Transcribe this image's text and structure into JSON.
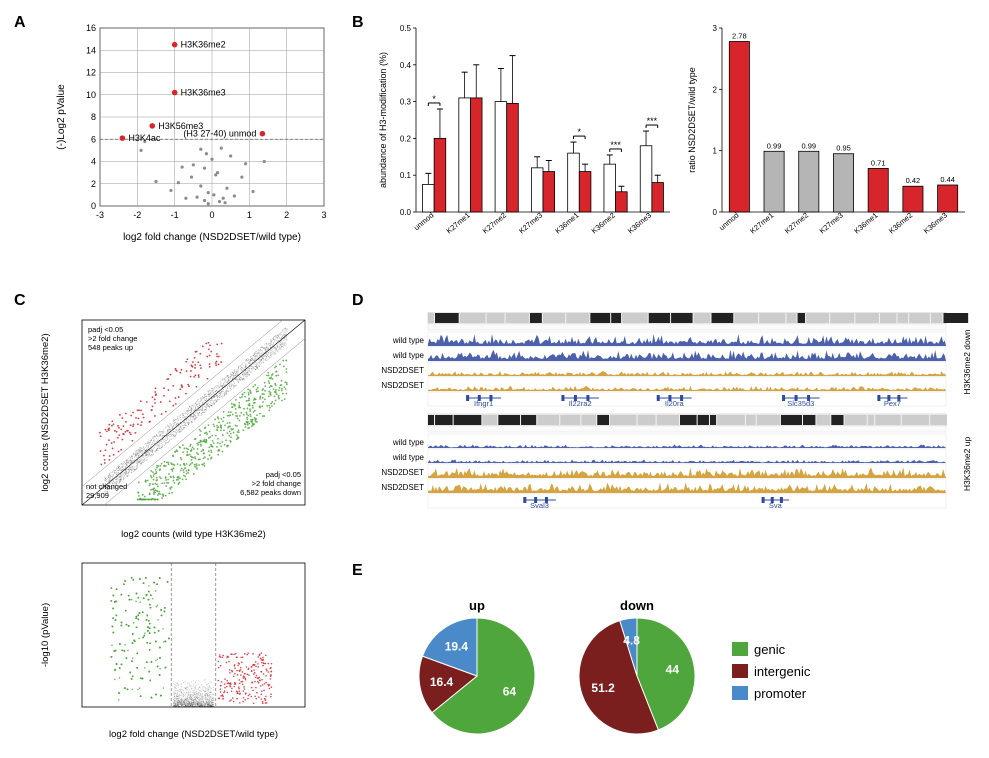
{
  "panelA": {
    "label": "A",
    "xlabel": "log2 fold change (NSD2DSET/wild type)",
    "ylabel": "(-)Log2 pValue",
    "xlim": [
      -3,
      3
    ],
    "xtick_step": 1,
    "ylim": [
      0,
      16
    ],
    "ytick_step": 2,
    "dashed_y": 6,
    "highlight_color": "#d7262b",
    "gray_color": "#8c8c8c",
    "gray_points": [
      [
        -0.4,
        0.8
      ],
      [
        -0.1,
        1.2
      ],
      [
        0.3,
        0.7
      ],
      [
        -0.9,
        2.1
      ],
      [
        0.1,
        2.8
      ],
      [
        0.4,
        1.6
      ],
      [
        -0.2,
        3.4
      ],
      [
        0.8,
        2.6
      ],
      [
        -0.5,
        3.7
      ],
      [
        0.2,
        0.4
      ],
      [
        -1.5,
        2.2
      ],
      [
        1.1,
        1.3
      ],
      [
        -0.7,
        0.7
      ],
      [
        0.6,
        0.9
      ],
      [
        -0.3,
        5.1
      ],
      [
        0.0,
        4.2
      ],
      [
        0.5,
        4.5
      ],
      [
        -0.2,
        0.5
      ],
      [
        -0.1,
        0.2
      ],
      [
        0.35,
        0.3
      ],
      [
        -0.8,
        3.5
      ],
      [
        0.9,
        3.8
      ],
      [
        -1.9,
        5
      ],
      [
        -1.8,
        5.8
      ],
      [
        -1.1,
        1.4
      ],
      [
        0.15,
        3.0
      ],
      [
        1.4,
        4.0
      ],
      [
        0.05,
        1.0
      ],
      [
        -0.3,
        1.8
      ],
      [
        -0.55,
        2.6
      ],
      [
        0.25,
        5.2
      ],
      [
        -0.15,
        4.7
      ]
    ],
    "red_points": [
      {
        "x": -1.0,
        "y": 14.5,
        "label": "H3K36me2"
      },
      {
        "x": -1.0,
        "y": 10.2,
        "label": "H3K36me3"
      },
      {
        "x": -1.6,
        "y": 7.2,
        "label": "H3K56me3"
      },
      {
        "x": -2.4,
        "y": 6.1,
        "label": "H3K4ac"
      },
      {
        "x": 1.35,
        "y": 6.5,
        "label": "(H3 27-40) unmod"
      }
    ]
  },
  "panelB": {
    "label": "B",
    "left": {
      "ylabel": "abundance of H3-modification (%)",
      "ylim": [
        0,
        0.5
      ],
      "ytick_step": 0.1,
      "categories": [
        "unmod",
        "K27me1",
        "K27me2",
        "K27me3",
        "K36me1",
        "K36me2",
        "K36me3"
      ],
      "white_values": [
        0.075,
        0.31,
        0.3,
        0.12,
        0.16,
        0.13,
        0.18
      ],
      "white_err": [
        0.03,
        0.07,
        0.09,
        0.03,
        0.03,
        0.025,
        0.04
      ],
      "red_values": [
        0.2,
        0.31,
        0.295,
        0.11,
        0.11,
        0.055,
        0.08
      ],
      "red_err": [
        0.08,
        0.09,
        0.13,
        0.03,
        0.02,
        0.015,
        0.02
      ],
      "sig": [
        "*",
        "",
        "",
        "",
        "*",
        "***",
        "***"
      ],
      "white_fill": "#ffffff",
      "red_fill": "#d7262b",
      "stroke": "#000"
    },
    "right": {
      "ylabel": "ratio NSD2DSET/wild type",
      "ylim": [
        0,
        3
      ],
      "ytick_step": 1,
      "categories": [
        "unmod",
        "K27me1",
        "K27me2",
        "K27me3",
        "K36me1",
        "K36me2",
        "K36me3"
      ],
      "values": [
        2.78,
        0.99,
        0.99,
        0.95,
        0.71,
        0.42,
        0.44
      ],
      "colors": [
        "#d7262b",
        "#b5b5b5",
        "#b5b5b5",
        "#b5b5b5",
        "#d7262b",
        "#d7262b",
        "#d7262b"
      ],
      "stroke": "#000"
    }
  },
  "panelC": {
    "label": "C",
    "scatter": {
      "xlabel": "log2 counts (wild type H3K36me2)",
      "ylabel": "log2 counts (NSD2DSET H3K36me2)",
      "lim": [
        0,
        10
      ],
      "text_up": "padj <0.05\n>2 fold change\n548 peaks up",
      "text_down": "padj <0.05\n>2 fold change\n6,582 peaks down",
      "text_nc": "not changed\n29,909",
      "red": "#d7262b",
      "green": "#4fa63c",
      "black": "#000"
    },
    "volcano": {
      "xlabel": "log2 fold change (NSD2DSET/wild type)",
      "ylabel": "-log10 (pValue)",
      "xlim": [
        -5,
        5
      ],
      "ylim": [
        0,
        20
      ],
      "vdash": [
        -1,
        1
      ]
    }
  },
  "panelD": {
    "label": "D",
    "tracks": [
      {
        "group": "down",
        "right_label": "H3K36me2 down",
        "rows": [
          "wild type",
          "wild type",
          "NSD2DSET",
          "NSD2DSET"
        ],
        "genes": [
          "Ifngr1",
          "Il22ra2",
          "Il20ra",
          "Slc35d3",
          "Pex7"
        ]
      },
      {
        "group": "up",
        "right_label": "H3K36me2 up",
        "rows": [
          "wild type",
          "wild type",
          "NSD2DSET",
          "NSD2DSET"
        ],
        "genes": [
          "Sval3",
          "Sva"
        ]
      }
    ],
    "wt_color": "#3a4fa3",
    "mut_color": "#d09a2b",
    "gene_color": "#2e4a9e"
  },
  "panelE": {
    "label": "E",
    "pies": [
      {
        "title": "up",
        "slices": [
          {
            "v": 64,
            "c": "#4fa63c"
          },
          {
            "v": 16.4,
            "c": "#7a1e1e"
          },
          {
            "v": 19.4,
            "c": "#4a8ac9"
          }
        ]
      },
      {
        "title": "down",
        "slices": [
          {
            "v": 44,
            "c": "#4fa63c"
          },
          {
            "v": 51.2,
            "c": "#7a1e1e"
          },
          {
            "v": 4.8,
            "c": "#4a8ac9"
          }
        ]
      }
    ],
    "legend": [
      {
        "label": "genic",
        "c": "#4fa63c"
      },
      {
        "label": "intergenic",
        "c": "#7a1e1e"
      },
      {
        "label": "promoter",
        "c": "#4a8ac9"
      }
    ]
  }
}
